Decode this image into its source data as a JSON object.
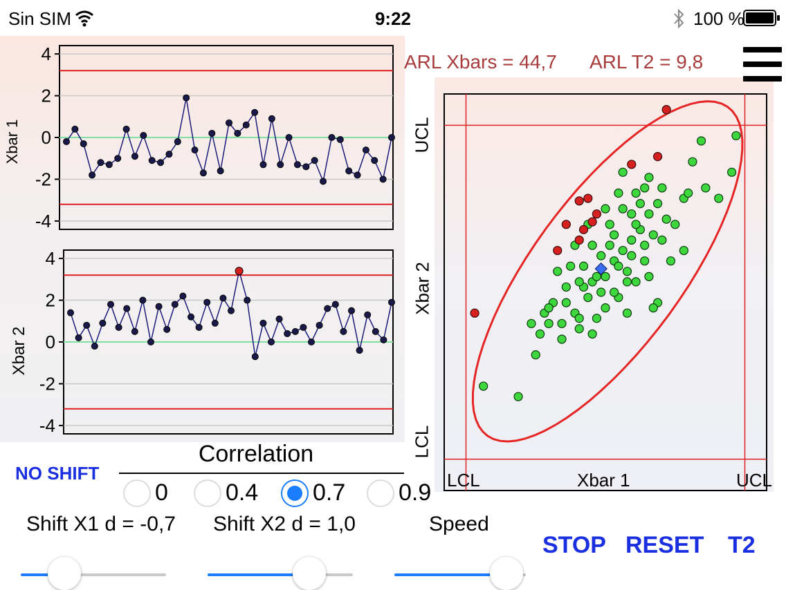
{
  "status_bar": {
    "carrier": "Sin SIM",
    "time": "9:22",
    "battery": "100 %"
  },
  "arl": {
    "xbars": "ARL Xbars = 44,7",
    "t2": "ARL T2 = 9,8"
  },
  "colors": {
    "ucl_lcl": "#e02020",
    "center": "#80e0a0",
    "series": "#1a1a7a",
    "out_of_control": "#d62020",
    "in_control": "#3ed83e",
    "accent": "#1a7cff",
    "button_text": "#1a2fe0"
  },
  "chart_data": [
    {
      "type": "line",
      "ylabel": "Xbar 1",
      "ylim": [
        -4.4,
        4.4
      ],
      "yticks": [
        -4,
        -2,
        0,
        2,
        4
      ],
      "ucl": 3.2,
      "lcl": -3.2,
      "center": 0,
      "values": [
        -0.2,
        0.4,
        -0.3,
        -1.8,
        -1.2,
        -1.3,
        -1.0,
        0.4,
        -0.9,
        0.1,
        -1.1,
        -1.2,
        -0.8,
        -0.2,
        1.9,
        -0.6,
        -1.7,
        0.2,
        -1.6,
        0.7,
        0.2,
        0.6,
        1.2,
        -1.3,
        0.9,
        -1.3,
        0.0,
        -1.3,
        -1.4,
        -1.1,
        -2.1,
        0.0,
        -0.1,
        -1.6,
        -1.8,
        -0.6,
        -1.1,
        -2.0,
        0.0
      ]
    },
    {
      "type": "line",
      "ylabel": "Xbar 2",
      "ylim": [
        -4.4,
        4.4
      ],
      "yticks": [
        -4,
        -2,
        0,
        2,
        4
      ],
      "ucl": 3.2,
      "lcl": -3.2,
      "center": 0,
      "values": [
        1.4,
        0.2,
        0.8,
        -0.2,
        0.9,
        1.8,
        0.7,
        1.6,
        0.5,
        2.0,
        0.0,
        1.7,
        0.6,
        1.8,
        2.2,
        1.2,
        0.7,
        1.9,
        0.9,
        2.1,
        1.5,
        3.4,
        2.0,
        -0.7,
        0.9,
        0.0,
        1.1,
        0.4,
        0.5,
        0.7,
        0.0,
        0.8,
        1.6,
        1.8,
        0.5,
        1.5,
        -0.4,
        1.3,
        0.5,
        0.1,
        1.9
      ],
      "out_of_control_index": [
        21
      ]
    },
    {
      "type": "scatter",
      "xlabel": "Xbar 1",
      "ylabel": "Xbar 2",
      "x_marks": [
        "LCL",
        "UCL"
      ],
      "y_marks": [
        "LCL",
        "UCL"
      ],
      "ucl": 3.2,
      "lcl": -3.2,
      "xlim": [
        -3.7,
        3.7
      ],
      "ylim": [
        -3.8,
        3.8
      ],
      "mean_point": [
        -0.1,
        0.45
      ],
      "ellipse": {
        "center": [
          0.05,
          0.4
        ],
        "semi_major": 4.2,
        "semi_minor": 1.6,
        "angle_deg": 47
      },
      "out_of_control_points": [
        [
          -0.6,
          1.75
        ],
        [
          -0.4,
          1.8
        ],
        [
          -0.2,
          1.5
        ],
        [
          -0.3,
          1.35
        ],
        [
          -0.5,
          1.2
        ],
        [
          -0.9,
          1.3
        ],
        [
          -1.1,
          0.8
        ],
        [
          -0.6,
          1.0
        ],
        [
          0.6,
          2.45
        ],
        [
          1.4,
          3.5
        ],
        [
          1.2,
          2.6
        ],
        [
          -3.0,
          -0.4
        ]
      ],
      "in_control_points": [
        [
          -1.3,
          -0.6
        ],
        [
          -0.9,
          -0.2
        ],
        [
          -0.5,
          0.1
        ],
        [
          -0.3,
          0.2
        ],
        [
          -0.1,
          0.0
        ],
        [
          0.0,
          0.3
        ],
        [
          -0.7,
          -0.4
        ],
        [
          -0.4,
          -0.1
        ],
        [
          0.2,
          0.6
        ],
        [
          0.4,
          0.8
        ],
        [
          0.6,
          1.0
        ],
        [
          0.5,
          0.4
        ],
        [
          0.8,
          1.2
        ],
        [
          1.0,
          1.5
        ],
        [
          1.2,
          1.7
        ],
        [
          0.9,
          0.9
        ],
        [
          1.3,
          1.0
        ],
        [
          1.6,
          1.3
        ],
        [
          1.5,
          0.6
        ],
        [
          0.7,
          0.2
        ],
        [
          0.3,
          -0.1
        ],
        [
          -0.2,
          -0.5
        ],
        [
          -0.6,
          -0.7
        ],
        [
          -1.0,
          -0.9
        ],
        [
          -1.5,
          -0.8
        ],
        [
          -1.7,
          -0.6
        ],
        [
          -1.2,
          -0.2
        ],
        [
          -0.8,
          0.5
        ],
        [
          -0.3,
          0.9
        ],
        [
          0.1,
          1.3
        ],
        [
          0.4,
          1.6
        ],
        [
          0.7,
          1.9
        ],
        [
          1.0,
          2.2
        ],
        [
          1.3,
          2.0
        ],
        [
          1.8,
          1.8
        ],
        [
          2.3,
          2.0
        ],
        [
          2.6,
          1.8
        ],
        [
          2.9,
          2.3
        ],
        [
          3.0,
          3.0
        ],
        [
          2.2,
          2.9
        ],
        [
          0.6,
          1.5
        ],
        [
          0.2,
          1.1
        ],
        [
          -0.1,
          0.7
        ],
        [
          -0.5,
          0.5
        ],
        [
          -0.9,
          0.1
        ],
        [
          -1.4,
          -0.4
        ],
        [
          -2.8,
          -1.8
        ],
        [
          -2.0,
          -2.0
        ],
        [
          -0.6,
          -0.5
        ],
        [
          0.0,
          -0.3
        ],
        [
          0.5,
          0.2
        ],
        [
          0.9,
          0.6
        ],
        [
          1.1,
          1.1
        ],
        [
          1.4,
          1.4
        ],
        [
          0.8,
          1.7
        ],
        [
          0.3,
          1.9
        ],
        [
          0.0,
          1.6
        ],
        [
          -0.4,
          1.3
        ],
        [
          -0.7,
          0.9
        ],
        [
          -1.1,
          0.4
        ],
        [
          1.8,
          0.8
        ],
        [
          1.9,
          1.9
        ],
        [
          2.0,
          2.5
        ],
        [
          0.5,
          -0.4
        ],
        [
          0.2,
          0.0
        ],
        [
          -0.2,
          0.3
        ],
        [
          0.6,
          0.7
        ],
        [
          1.0,
          0.3
        ],
        [
          1.2,
          -0.2
        ],
        [
          1.1,
          -0.3
        ],
        [
          -1.6,
          -1.2
        ],
        [
          -1.0,
          -0.6
        ],
        [
          -0.3,
          -0.8
        ],
        [
          0.3,
          0.5
        ],
        [
          0.7,
          1.3
        ],
        [
          -0.6,
          0.2
        ],
        [
          -1.3,
          -0.3
        ],
        [
          0.1,
          0.9
        ],
        [
          0.9,
          2.0
        ],
        [
          0.4,
          2.3
        ]
      ]
    }
  ],
  "correlation": {
    "title": "Correlation",
    "options": [
      "0",
      "0.4",
      "0.7",
      "0.9"
    ],
    "selected": "0.7"
  },
  "no_shift_label": "NO SHIFT",
  "shift": {
    "x1_label": "Shift X1 d = -0,7",
    "x2_label": "Shift X2 d = 1,0",
    "x1_value": 0.3,
    "x2_value": 0.7
  },
  "speed": {
    "label": "Speed",
    "value": 0.85
  },
  "buttons": {
    "stop": "STOP",
    "reset": "RESET",
    "t2": "T2"
  }
}
